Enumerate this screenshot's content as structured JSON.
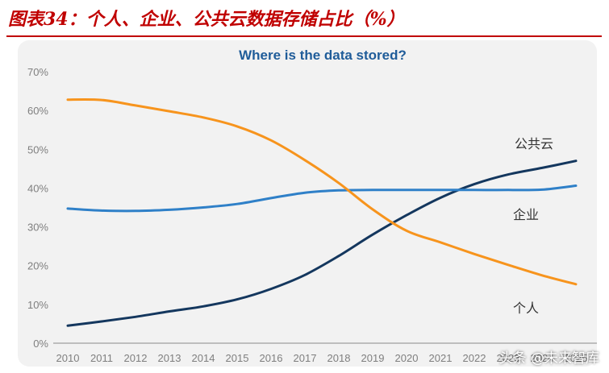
{
  "caption": "图表34：个人、企业、公共云数据存储占比（%）",
  "watermark": "头条 @未来智库",
  "colors": {
    "panel": "#f2f2f2",
    "title": "#1f5c99",
    "axis": "#8a8a8a",
    "gray_text": "#7f7f7f"
  },
  "chart_data": {
    "type": "line",
    "title": "Where is the data stored?",
    "xlabel": "",
    "ylabel": "",
    "x": [
      2010,
      2011,
      2012,
      2013,
      2014,
      2015,
      2016,
      2017,
      2018,
      2019,
      2020,
      2021,
      2022,
      2023,
      2024,
      2025
    ],
    "y_ticks": [
      "0%",
      "10%",
      "20%",
      "30%",
      "40%",
      "50%",
      "60%",
      "70%"
    ],
    "ylim": [
      0,
      70
    ],
    "grid": false,
    "series": [
      {
        "name": "公共云",
        "color": "#14375e",
        "values": [
          4.5,
          5.6,
          6.8,
          8.2,
          9.5,
          11.3,
          14,
          17.6,
          22.5,
          28,
          33,
          37.5,
          41,
          43.5,
          45.2,
          47
        ]
      },
      {
        "name": "企业",
        "color": "#2f80c8",
        "values": [
          34.7,
          34.2,
          34.1,
          34.4,
          35,
          35.9,
          37.4,
          38.8,
          39.4,
          39.5,
          39.5,
          39.5,
          39.5,
          39.5,
          39.6,
          40.6
        ]
      },
      {
        "name": "个人",
        "color": "#f7941d",
        "values": [
          62.8,
          62.7,
          61.3,
          59.8,
          58.2,
          55.9,
          52.3,
          47.2,
          41.3,
          34.5,
          29,
          26,
          23,
          20.2,
          17.5,
          15.2
        ]
      }
    ]
  }
}
